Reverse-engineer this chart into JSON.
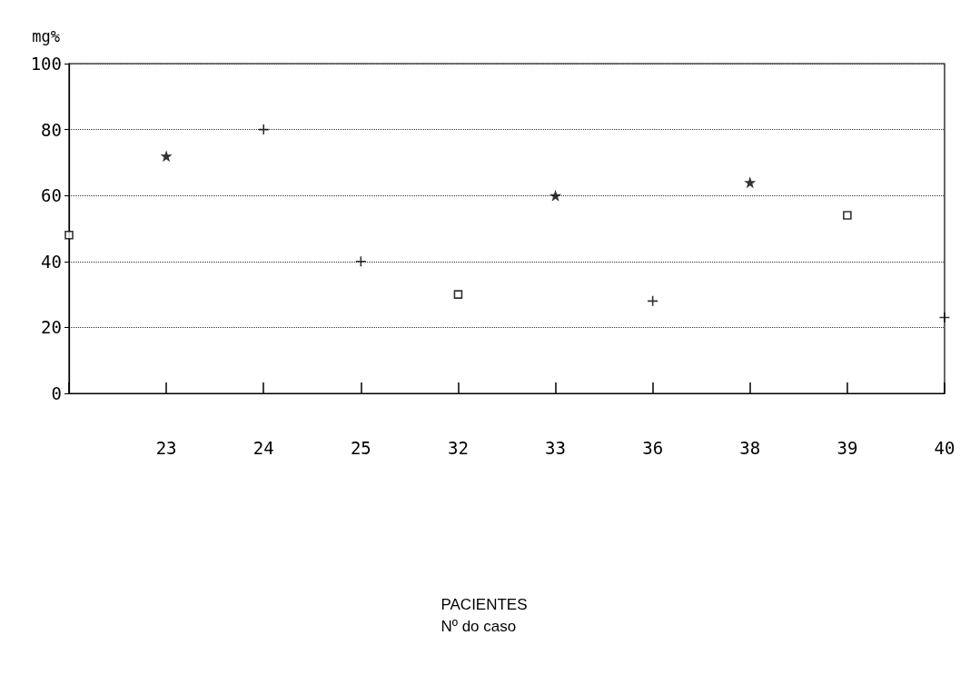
{
  "chart_data": {
    "type": "scatter",
    "ylabel": "mg%",
    "annotations": [
      "PACIENTES\nNº do caso"
    ],
    "categories": [
      null,
      "23",
      "24",
      "25",
      "32",
      "33",
      "36",
      "38",
      "39",
      "40"
    ],
    "ylim": [
      0,
      100
    ],
    "yticks": [
      0,
      20,
      40,
      60,
      80,
      100
    ],
    "grid": "y",
    "series": [
      {
        "marker": "square",
        "color": "#000000",
        "values": [
          48,
          null,
          null,
          null,
          30,
          null,
          null,
          null,
          54,
          null
        ]
      },
      {
        "marker": "star",
        "color": "#000000",
        "values": [
          null,
          72,
          null,
          null,
          null,
          60,
          null,
          64,
          null,
          null
        ]
      },
      {
        "marker": "cross",
        "color": "#000000",
        "values": [
          null,
          null,
          80,
          null,
          null,
          null,
          28,
          null,
          null,
          null
        ]
      },
      {
        "marker": "cross",
        "color": "#000000",
        "values": [
          null,
          null,
          null,
          40,
          null,
          null,
          null,
          null,
          null,
          23
        ]
      }
    ]
  }
}
